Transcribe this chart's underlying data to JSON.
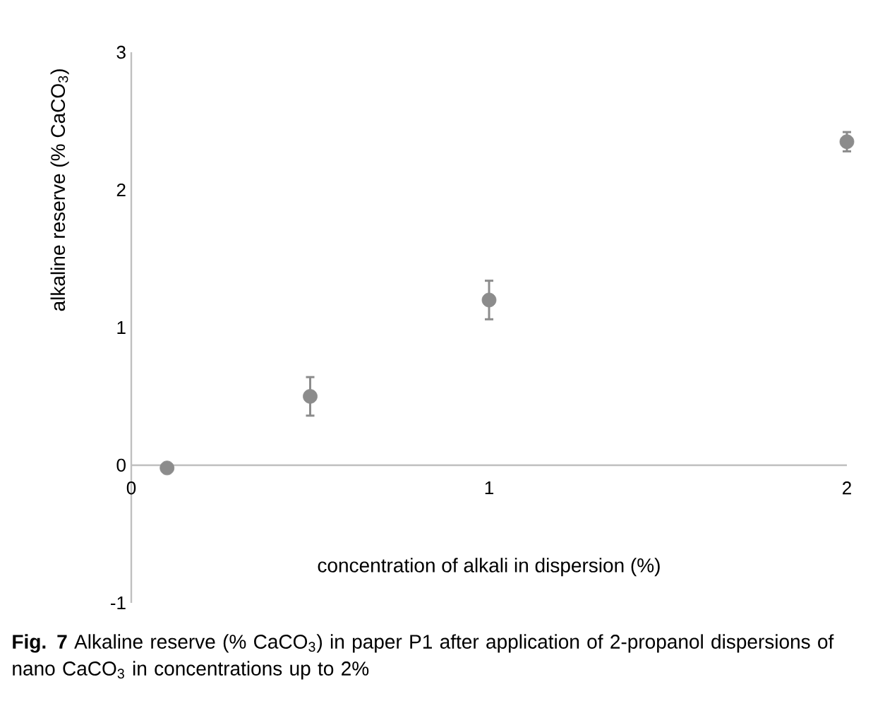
{
  "chart_data": {
    "type": "scatter",
    "xlabel": "concentration of alkali in dispersion (%)",
    "ylabel": "alkaline reserve (% CaCO$_{3}$)",
    "x": [
      0.1,
      0.5,
      1,
      2
    ],
    "series": [
      {
        "color": "#8c8c8c",
        "values": [
          -0.02,
          0.5,
          1.2,
          2.35
        ],
        "errors": [
          null,
          0.14,
          0.14,
          0.07
        ]
      }
    ],
    "xlim": [
      0,
      2
    ],
    "xticks": [
      0,
      1,
      2
    ],
    "ylim": [
      -1,
      3
    ],
    "yticks": [
      -1,
      0,
      1,
      2,
      3
    ],
    "marker": "circle",
    "grid": false,
    "annotations": [
      "**Fig. 7**  Alkaline reserve (% CaCO$_{3}$) in paper P1 after application of 2-propanol dispersions of nano CaCO$_{3}$ in concentrations up to 2%"
    ]
  }
}
